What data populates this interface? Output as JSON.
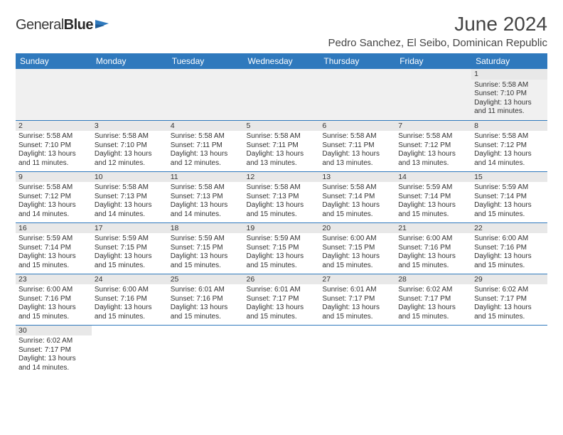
{
  "brand": {
    "part1": "General",
    "part2": "Blue",
    "color_text": "#3a3a3a",
    "color_shape": "#2f79bd"
  },
  "title": "June 2024",
  "location": "Pedro Sanchez, El Seibo, Dominican Republic",
  "colors": {
    "header_bg": "#2f79bd",
    "header_fg": "#ffffff",
    "daynum_bg": "#e8e8e8",
    "row_divider": "#2f79bd",
    "first_row_bg": "#f0f0f0",
    "text": "#333333"
  },
  "weekdays": [
    "Sunday",
    "Monday",
    "Tuesday",
    "Wednesday",
    "Thursday",
    "Friday",
    "Saturday"
  ],
  "weeks": [
    [
      null,
      null,
      null,
      null,
      null,
      null,
      {
        "n": "1",
        "sr": "5:58 AM",
        "ss": "7:10 PM",
        "dl": "13 hours and 11 minutes."
      }
    ],
    [
      {
        "n": "2",
        "sr": "5:58 AM",
        "ss": "7:10 PM",
        "dl": "13 hours and 11 minutes."
      },
      {
        "n": "3",
        "sr": "5:58 AM",
        "ss": "7:10 PM",
        "dl": "13 hours and 12 minutes."
      },
      {
        "n": "4",
        "sr": "5:58 AM",
        "ss": "7:11 PM",
        "dl": "13 hours and 12 minutes."
      },
      {
        "n": "5",
        "sr": "5:58 AM",
        "ss": "7:11 PM",
        "dl": "13 hours and 13 minutes."
      },
      {
        "n": "6",
        "sr": "5:58 AM",
        "ss": "7:11 PM",
        "dl": "13 hours and 13 minutes."
      },
      {
        "n": "7",
        "sr": "5:58 AM",
        "ss": "7:12 PM",
        "dl": "13 hours and 13 minutes."
      },
      {
        "n": "8",
        "sr": "5:58 AM",
        "ss": "7:12 PM",
        "dl": "13 hours and 14 minutes."
      }
    ],
    [
      {
        "n": "9",
        "sr": "5:58 AM",
        "ss": "7:12 PM",
        "dl": "13 hours and 14 minutes."
      },
      {
        "n": "10",
        "sr": "5:58 AM",
        "ss": "7:13 PM",
        "dl": "13 hours and 14 minutes."
      },
      {
        "n": "11",
        "sr": "5:58 AM",
        "ss": "7:13 PM",
        "dl": "13 hours and 14 minutes."
      },
      {
        "n": "12",
        "sr": "5:58 AM",
        "ss": "7:13 PM",
        "dl": "13 hours and 15 minutes."
      },
      {
        "n": "13",
        "sr": "5:58 AM",
        "ss": "7:14 PM",
        "dl": "13 hours and 15 minutes."
      },
      {
        "n": "14",
        "sr": "5:59 AM",
        "ss": "7:14 PM",
        "dl": "13 hours and 15 minutes."
      },
      {
        "n": "15",
        "sr": "5:59 AM",
        "ss": "7:14 PM",
        "dl": "13 hours and 15 minutes."
      }
    ],
    [
      {
        "n": "16",
        "sr": "5:59 AM",
        "ss": "7:14 PM",
        "dl": "13 hours and 15 minutes."
      },
      {
        "n": "17",
        "sr": "5:59 AM",
        "ss": "7:15 PM",
        "dl": "13 hours and 15 minutes."
      },
      {
        "n": "18",
        "sr": "5:59 AM",
        "ss": "7:15 PM",
        "dl": "13 hours and 15 minutes."
      },
      {
        "n": "19",
        "sr": "5:59 AM",
        "ss": "7:15 PM",
        "dl": "13 hours and 15 minutes."
      },
      {
        "n": "20",
        "sr": "6:00 AM",
        "ss": "7:15 PM",
        "dl": "13 hours and 15 minutes."
      },
      {
        "n": "21",
        "sr": "6:00 AM",
        "ss": "7:16 PM",
        "dl": "13 hours and 15 minutes."
      },
      {
        "n": "22",
        "sr": "6:00 AM",
        "ss": "7:16 PM",
        "dl": "13 hours and 15 minutes."
      }
    ],
    [
      {
        "n": "23",
        "sr": "6:00 AM",
        "ss": "7:16 PM",
        "dl": "13 hours and 15 minutes."
      },
      {
        "n": "24",
        "sr": "6:00 AM",
        "ss": "7:16 PM",
        "dl": "13 hours and 15 minutes."
      },
      {
        "n": "25",
        "sr": "6:01 AM",
        "ss": "7:16 PM",
        "dl": "13 hours and 15 minutes."
      },
      {
        "n": "26",
        "sr": "6:01 AM",
        "ss": "7:17 PM",
        "dl": "13 hours and 15 minutes."
      },
      {
        "n": "27",
        "sr": "6:01 AM",
        "ss": "7:17 PM",
        "dl": "13 hours and 15 minutes."
      },
      {
        "n": "28",
        "sr": "6:02 AM",
        "ss": "7:17 PM",
        "dl": "13 hours and 15 minutes."
      },
      {
        "n": "29",
        "sr": "6:02 AM",
        "ss": "7:17 PM",
        "dl": "13 hours and 15 minutes."
      }
    ],
    [
      {
        "n": "30",
        "sr": "6:02 AM",
        "ss": "7:17 PM",
        "dl": "13 hours and 14 minutes."
      },
      null,
      null,
      null,
      null,
      null,
      null
    ]
  ],
  "labels": {
    "sunrise": "Sunrise:",
    "sunset": "Sunset:",
    "daylight": "Daylight:"
  }
}
